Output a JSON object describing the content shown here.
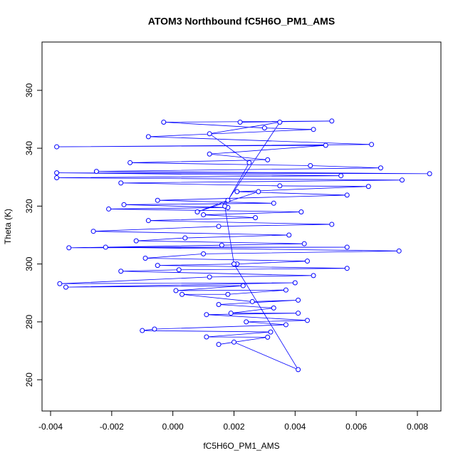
{
  "chart_data": {
    "type": "scatter",
    "lines": true,
    "title": "ATOM3 Northbound fC5H6O_PM1_AMS",
    "xlabel": "fC5H6O_PM1_AMS",
    "ylabel": "Theta (K)",
    "color": "#0000ff",
    "xlim": [
      -0.00428,
      0.00877
    ],
    "ylim": [
      249.2,
      376.7
    ],
    "xticks": [
      -0.004,
      -0.002,
      {
        "value": 0,
        "label": "0.000"
      },
      0.002,
      0.004,
      0.006,
      0.008
    ],
    "yticks": [
      260,
      280,
      300,
      320,
      340,
      360
    ],
    "x": [
      0.0022,
      0.0052,
      -0.0003,
      0.003,
      0.0046,
      -0.0008,
      0.0065,
      -0.0038,
      0.005,
      0.0012,
      0.0031,
      -0.0014,
      0.0045,
      0.0068,
      -0.0025,
      0.0084,
      -0.0038,
      0.0055,
      -0.0038,
      0.0075,
      -0.0017,
      0.0035,
      0.0064,
      0.0021,
      0.0057,
      -0.0005,
      0.0033,
      -0.0016,
      0.0018,
      -0.0021,
      0.0042,
      0.001,
      0.0027,
      -0.0008,
      0.0052,
      0.0015,
      -0.0026,
      0.0038,
      0.0004,
      -0.0012,
      0.0043,
      0.0016,
      -0.0034,
      0.0057,
      -0.0022,
      0.0074,
      0.001,
      -0.0009,
      0.0044,
      0.0021,
      -0.0005,
      0.0057,
      0.0002,
      -0.0017,
      0.0046,
      0.0012,
      -0.0037,
      0.004,
      -0.0035,
      0.0023,
      0.0001,
      0.0037,
      0.0018,
      0.0003,
      0.0026,
      0.0041,
      0.0015,
      0.0033,
      0.0019,
      0.0041,
      0.0011,
      0.0044,
      0.0024,
      0.0037,
      -0.0006,
      -0.001,
      0.0032,
      0.0011,
      0.0031,
      0.0015,
      0.002,
      0.0041,
      0.002,
      0.0017,
      0.0025,
      0.0012,
      0.0035,
      0.0018,
      0.0008,
      0.0028
    ],
    "y": [
      349,
      349.4,
      349,
      347,
      346.5,
      344,
      341.3,
      340.5,
      341,
      338,
      336,
      335,
      334,
      333.2,
      332,
      331.2,
      331.5,
      330.5,
      329.8,
      329,
      328,
      327,
      326.8,
      325,
      323.8,
      322,
      321,
      320.5,
      319.5,
      319,
      318,
      317,
      316,
      315,
      313.7,
      313,
      311.3,
      310,
      309,
      308,
      307,
      306.5,
      305.6,
      305.8,
      305.8,
      304.5,
      303.5,
      302,
      301,
      300,
      299.5,
      298.5,
      298,
      297.5,
      296,
      295.5,
      293.2,
      293.5,
      292,
      292.5,
      290.8,
      291,
      289.5,
      289.5,
      287,
      287.5,
      286,
      284.8,
      283,
      283,
      282.5,
      280.5,
      280,
      279,
      277.5,
      277,
      276.5,
      274.8,
      274.7,
      272.2,
      273,
      263.5,
      300,
      320,
      335,
      345,
      349,
      322,
      318,
      325
    ]
  }
}
